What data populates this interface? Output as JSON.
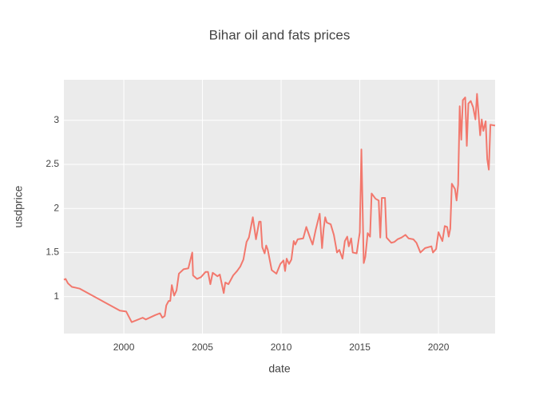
{
  "chart_data": {
    "type": "line",
    "title": "Bihar oil and fats prices",
    "x_label": "date",
    "y_label": "usdprice",
    "color": "#f2786d",
    "grid": true,
    "xlim": [
      1996.19,
      2023.6
    ],
    "xticks": [
      2000,
      2005,
      2010,
      2015,
      2020
    ],
    "ylim": [
      0.58,
      3.46
    ],
    "yticks": [
      1,
      1.5,
      2,
      2.5,
      3
    ],
    "x": [
      1996.19,
      1996.3,
      1996.45,
      1996.7,
      1996.95,
      1997.2,
      1999.75,
      2000.15,
      2000.5,
      2001.2,
      2001.4,
      2002.0,
      2002.3,
      2002.45,
      2002.6,
      2002.7,
      2002.85,
      2002.95,
      2003.05,
      2003.2,
      2003.35,
      2003.5,
      2003.8,
      2004.1,
      2004.35,
      2004.4,
      2004.65,
      2004.9,
      2005.2,
      2005.35,
      2005.5,
      2005.65,
      2005.95,
      2006.1,
      2006.35,
      2006.45,
      2006.65,
      2006.95,
      2007.2,
      2007.4,
      2007.6,
      2007.8,
      2007.95,
      2008.2,
      2008.4,
      2008.6,
      2008.7,
      2008.8,
      2008.95,
      2009.05,
      2009.15,
      2009.4,
      2009.7,
      2009.95,
      2010.15,
      2010.25,
      2010.35,
      2010.5,
      2010.65,
      2010.8,
      2010.9,
      2011.05,
      2011.4,
      2011.6,
      2011.85,
      2012.0,
      2012.2,
      2012.45,
      2012.6,
      2012.7,
      2012.8,
      2012.9,
      2013.15,
      2013.35,
      2013.55,
      2013.7,
      2013.9,
      2014.05,
      2014.2,
      2014.3,
      2014.45,
      2014.55,
      2014.8,
      2015.0,
      2015.1,
      2015.25,
      2015.35,
      2015.5,
      2015.65,
      2015.75,
      2016.0,
      2016.2,
      2016.3,
      2016.4,
      2016.6,
      2016.7,
      2017.0,
      2017.2,
      2017.4,
      2017.65,
      2017.9,
      2018.1,
      2018.4,
      2018.6,
      2018.85,
      2019.15,
      2019.55,
      2019.65,
      2019.85,
      2020.0,
      2020.25,
      2020.4,
      2020.55,
      2020.65,
      2020.75,
      2020.85,
      2021.05,
      2021.15,
      2021.25,
      2021.35,
      2021.45,
      2021.55,
      2021.7,
      2021.8,
      2021.9,
      2022.05,
      2022.2,
      2022.35,
      2022.45,
      2022.65,
      2022.75,
      2022.85,
      2023.0,
      2023.1,
      2023.2,
      2023.3,
      2023.6
    ],
    "values": [
      1.19,
      1.2,
      1.15,
      1.11,
      1.1,
      1.09,
      0.84,
      0.83,
      0.71,
      0.76,
      0.74,
      0.79,
      0.81,
      0.76,
      0.78,
      0.9,
      0.95,
      0.95,
      1.13,
      1.01,
      1.07,
      1.26,
      1.31,
      1.32,
      1.5,
      1.24,
      1.2,
      1.22,
      1.28,
      1.28,
      1.14,
      1.27,
      1.23,
      1.25,
      1.04,
      1.16,
      1.14,
      1.24,
      1.29,
      1.34,
      1.42,
      1.62,
      1.67,
      1.9,
      1.65,
      1.85,
      1.85,
      1.56,
      1.49,
      1.58,
      1.53,
      1.3,
      1.26,
      1.37,
      1.41,
      1.29,
      1.43,
      1.37,
      1.42,
      1.63,
      1.59,
      1.65,
      1.66,
      1.79,
      1.66,
      1.59,
      1.76,
      1.94,
      1.55,
      1.77,
      1.9,
      1.84,
      1.82,
      1.7,
      1.5,
      1.53,
      1.43,
      1.63,
      1.68,
      1.57,
      1.66,
      1.5,
      1.49,
      1.73,
      2.67,
      1.38,
      1.45,
      1.72,
      1.68,
      2.17,
      2.11,
      2.09,
      1.67,
      2.12,
      2.12,
      1.67,
      1.61,
      1.62,
      1.65,
      1.67,
      1.7,
      1.66,
      1.65,
      1.61,
      1.5,
      1.55,
      1.57,
      1.5,
      1.54,
      1.73,
      1.63,
      1.8,
      1.79,
      1.68,
      1.77,
      2.28,
      2.22,
      2.09,
      2.27,
      3.16,
      2.78,
      3.23,
      3.26,
      2.71,
      3.19,
      3.22,
      3.15,
      3.01,
      3.3,
      2.83,
      3.01,
      2.88,
      2.99,
      2.56,
      2.44,
      2.95,
      2.94
    ]
  }
}
